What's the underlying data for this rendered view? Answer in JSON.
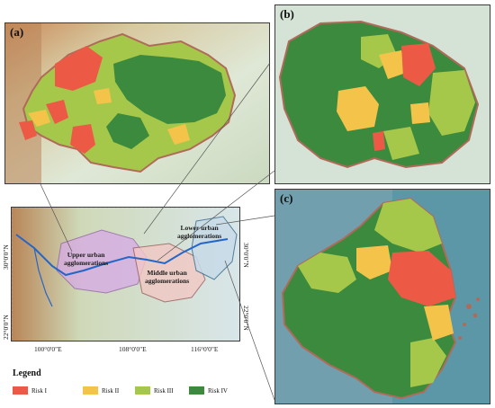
{
  "panels": {
    "a": {
      "label": "(a)"
    },
    "b": {
      "label": "(b)"
    },
    "c": {
      "label": "(c)"
    }
  },
  "overview": {
    "lon_ticks": [
      "100°0'0\"E",
      "108°0'0\"E",
      "116°0'0\"E"
    ],
    "lat_ticks": [
      "30°0'0\"N",
      "22°0'0\"N"
    ],
    "regions": {
      "upper": "Upper urban\nagglomerations",
      "middle": "Middle urban\nagglomerations",
      "lower": "Lower urban\nagglomerations"
    }
  },
  "legend": {
    "title": "Legend",
    "items": [
      {
        "label": "Risk I",
        "color": "#ec5a46"
      },
      {
        "label": "Risk II",
        "color": "#f4c44a"
      },
      {
        "label": "Risk III",
        "color": "#a6c84a"
      },
      {
        "label": "Risk IV",
        "color": "#3b8a3e"
      }
    ]
  },
  "colors": {
    "relief_light": "#dfe8d6",
    "relief_dark": "#b7c9a8",
    "sea": "#5c97a8",
    "border_glow": "#b06a5a"
  }
}
